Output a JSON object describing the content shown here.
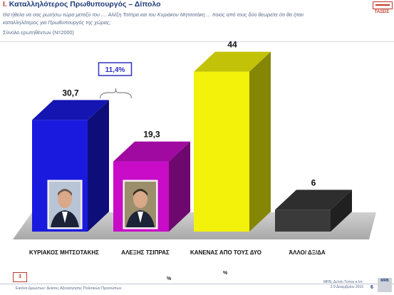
{
  "header": {
    "number": "Ι.",
    "title": "Καταλληλότερος Πρωθυπουργός – Δίπολο",
    "question": "Θα ήθελα να σας ρωτήσω τώρα μεταξύ του .... Αλέξη Τσίπρα και του Κυριάκου Μητσοτάκη ... ποιος από τους δύο θεωρείτε ότι θα ήταν καταλληλότερος για Πρωθυπουργός της χώρας;",
    "sample": "Σύνολο ερωτηθέντων (N=2000)"
  },
  "logo": {
    "text": "ΤΑΣΕΙΣ"
  },
  "chart_data": {
    "type": "bar",
    "categories": [
      "ΚΥΡΙΑΚΟΣ ΜΗΤΣΟΤΑΚΗΣ",
      "ΑΛΕΞΗΣ ΤΣΙΠΡΑΣ",
      "ΚΑΝΕΝΑΣ ΑΠΟ ΤΟΥΣ ΔΥΟ",
      "ΆΛΛΟ/ ΔΞ/ΔΑ"
    ],
    "values": [
      30.7,
      19.3,
      44,
      6
    ],
    "value_labels": [
      "30,7",
      "19,3",
      "44",
      "6"
    ],
    "colors": [
      "#1a1adf",
      "#c80cc8",
      "#f2f20a",
      "#3a3a3a"
    ],
    "annotation": {
      "text": "11,4%",
      "between": [
        0,
        1
      ]
    },
    "ylim": [
      0,
      50
    ]
  },
  "footer": {
    "page_box": "3",
    "left_text": "Εικόνα Δρώντων: Δείκτες Αξιολόγησης Πολιτικών Προσώπων",
    "right_line1": "MRB, Δελτίο Τύπου κ.λπ.",
    "right_line2": "2-9 Δεκεμβρίου 2016",
    "page_number": "6",
    "mrb_text": "MRB",
    "pct_left": "%",
    "pct_right": "%"
  }
}
